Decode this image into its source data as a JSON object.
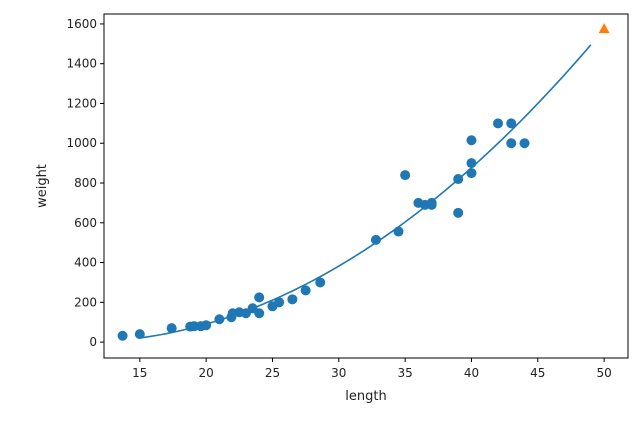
{
  "chart_data": {
    "type": "scatter",
    "xlabel": "length",
    "ylabel": "weight",
    "xlim": [
      12.3,
      51.8
    ],
    "ylim": [
      -80,
      1650
    ],
    "xticks": [
      15,
      20,
      25,
      30,
      35,
      40,
      45,
      50
    ],
    "yticks": [
      0,
      200,
      400,
      600,
      800,
      1000,
      1200,
      1400,
      1600
    ],
    "grid": false,
    "colors": {
      "points": "#1f77b4",
      "fit": "#1f77b4",
      "marker": "#ff7f0e"
    },
    "series": [
      {
        "type": "scatter",
        "marker": "circle",
        "points": [
          [
            13.7,
            32
          ],
          [
            15.0,
            40
          ],
          [
            17.4,
            70
          ],
          [
            18.8,
            78
          ],
          [
            19.1,
            80
          ],
          [
            19.6,
            80
          ],
          [
            20.0,
            85
          ],
          [
            21.0,
            115
          ],
          [
            21.9,
            125
          ],
          [
            22.0,
            145
          ],
          [
            22.5,
            150
          ],
          [
            23.0,
            145
          ],
          [
            23.5,
            170
          ],
          [
            24.0,
            145
          ],
          [
            24.0,
            225
          ],
          [
            25.0,
            180
          ],
          [
            25.5,
            200
          ],
          [
            26.5,
            215
          ],
          [
            27.5,
            260
          ],
          [
            28.6,
            300
          ],
          [
            32.8,
            514
          ],
          [
            34.5,
            556
          ],
          [
            35.0,
            840
          ],
          [
            36.0,
            700
          ],
          [
            36.5,
            690
          ],
          [
            37.0,
            690
          ],
          [
            37.0,
            700
          ],
          [
            39.0,
            650
          ],
          [
            39.0,
            820
          ],
          [
            40.0,
            850
          ],
          [
            40.0,
            900
          ],
          [
            40.0,
            1015
          ],
          [
            42.0,
            1100
          ],
          [
            43.0,
            1000
          ],
          [
            43.0,
            1100
          ],
          [
            44.0,
            1000
          ]
        ]
      },
      {
        "type": "line",
        "coefficients": [
          1.0143,
          -21.558,
          116.05
        ],
        "x_range": [
          15,
          49
        ]
      },
      {
        "type": "scatter",
        "marker": "triangle",
        "points": [
          [
            50,
            1574
          ]
        ]
      }
    ]
  }
}
